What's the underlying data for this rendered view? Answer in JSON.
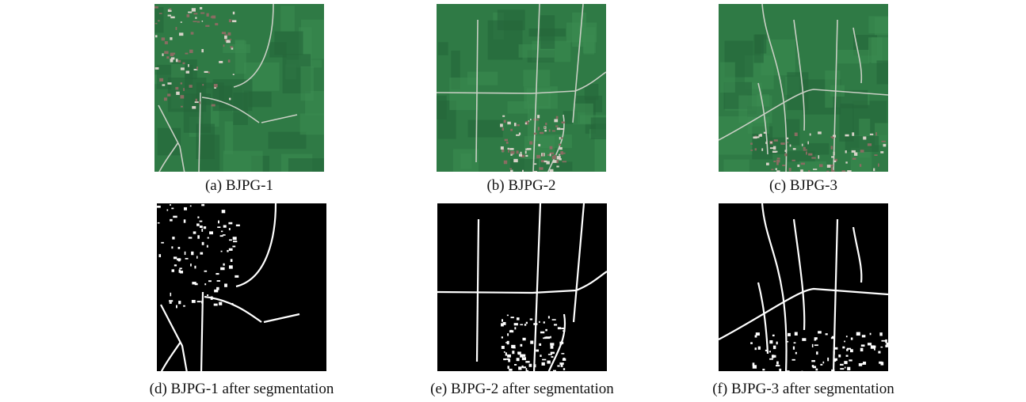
{
  "figure": {
    "panels": [
      {
        "caption": "(a) BJPG-1"
      },
      {
        "caption": "(b) BJPG-2"
      },
      {
        "caption": "(c) BJPG-3"
      },
      {
        "caption": "(d) BJPG-1 after segmentation"
      },
      {
        "caption": "(e) BJPG-2 after segmentation"
      },
      {
        "caption": "(f) BJPG-3 after segmentation"
      }
    ]
  }
}
